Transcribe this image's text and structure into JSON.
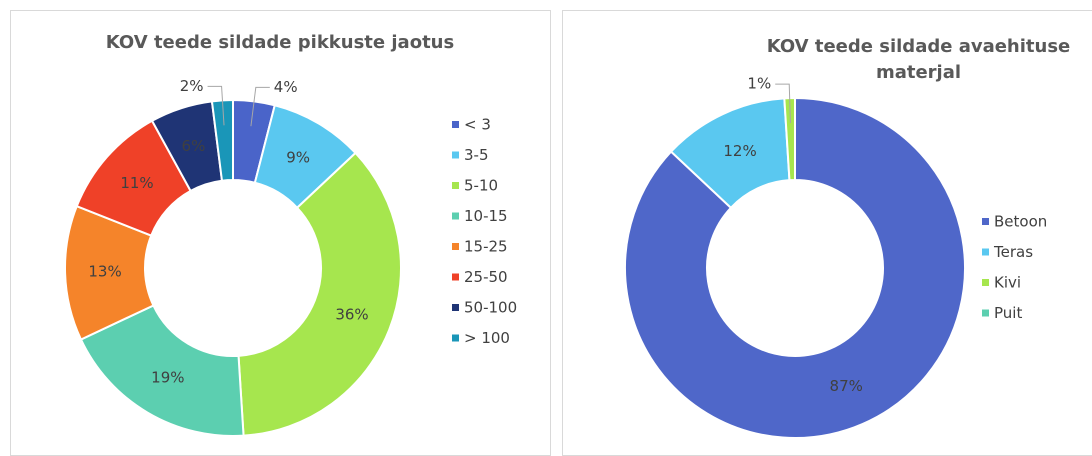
{
  "chart_data": [
    {
      "type": "donut",
      "title": "KOV teede sildade pikkuste jaotus",
      "categories": [
        "< 3",
        "3-5",
        "5-10",
        "10-15",
        "15-25",
        "25-50",
        "50-100",
        "> 100"
      ],
      "values": [
        4,
        9,
        36,
        19,
        13,
        11,
        6,
        2
      ],
      "value_labels": [
        "4%",
        "9%",
        "36%",
        "19%",
        "13%",
        "11%",
        "6%",
        "2%"
      ],
      "colors": [
        "#4a64c9",
        "#5ac8f0",
        "#a6e64e",
        "#5ccfb0",
        "#f5842a",
        "#ef4128",
        "#1f3475",
        "#1a96b8"
      ],
      "legend": "right"
    },
    {
      "type": "donut",
      "title": "KOV teede sildade avaehituse materjal",
      "categories": [
        "Betoon",
        "Teras",
        "Kivi",
        "Puit"
      ],
      "values": [
        87,
        12,
        1,
        0
      ],
      "value_labels": [
        "87%",
        "12%",
        "1%",
        null
      ],
      "colors": [
        "#4f67c9",
        "#5ac8f0",
        "#a6e64e",
        "#5ccfb0"
      ],
      "legend": "right"
    }
  ]
}
